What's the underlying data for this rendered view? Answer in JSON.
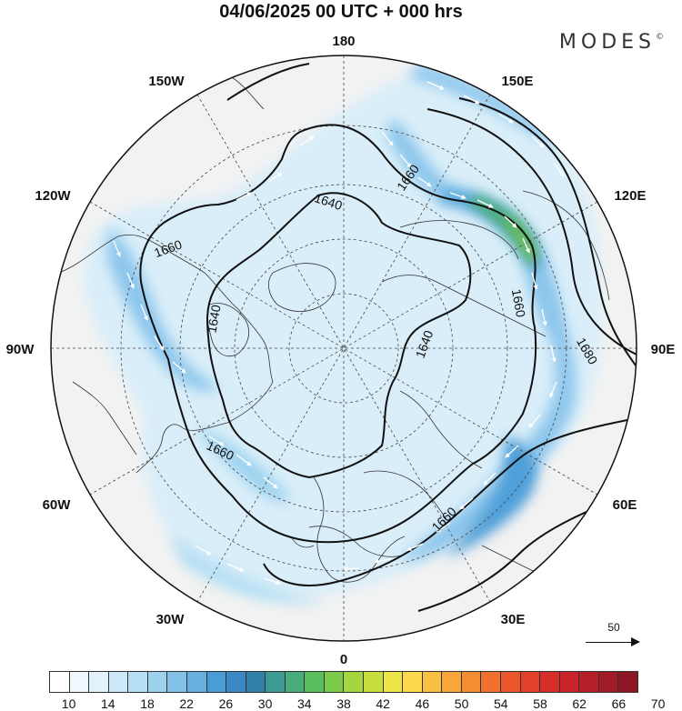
{
  "title": "04/06/2025  00 UTC  + 000 hrs",
  "brand": {
    "name": "MODES",
    "mark": "©"
  },
  "longitude_labels": [
    {
      "id": "lon-180",
      "text": "180"
    },
    {
      "id": "lon-150w",
      "text": "150W"
    },
    {
      "id": "lon-150e",
      "text": "150E"
    },
    {
      "id": "lon-120w",
      "text": "120W"
    },
    {
      "id": "lon-120e",
      "text": "120E"
    },
    {
      "id": "lon-90w",
      "text": "90W"
    },
    {
      "id": "lon-90e",
      "text": "90E"
    },
    {
      "id": "lon-60w",
      "text": "60W"
    },
    {
      "id": "lon-60e",
      "text": "60E"
    },
    {
      "id": "lon-30w",
      "text": "30W"
    },
    {
      "id": "lon-30e",
      "text": "30E"
    },
    {
      "id": "lon-0",
      "text": "0"
    }
  ],
  "contour_labels": [
    "1640",
    "1640",
    "1640",
    "1660",
    "1660",
    "1660",
    "1660",
    "1660",
    "1680"
  ],
  "contour_levels": [
    1640,
    1660,
    1680
  ],
  "reference_vector": {
    "value": "50"
  },
  "colorbar": {
    "ticks": [
      "10",
      "14",
      "18",
      "22",
      "26",
      "30",
      "34",
      "38",
      "42",
      "46",
      "50",
      "54",
      "58",
      "62",
      "66",
      "70"
    ],
    "colors": [
      "#ffffff",
      "#eef8fd",
      "#e1f2fb",
      "#cde9f7",
      "#b5dff4",
      "#9dd2ef",
      "#82c2e8",
      "#66b0e0",
      "#4a9cd6",
      "#3a88c6",
      "#2f7fa8",
      "#3b9a93",
      "#49ac7c",
      "#5bbe5c",
      "#7ccb48",
      "#a4d63e",
      "#c8de3c",
      "#ece448",
      "#fbd84c",
      "#f9bf42",
      "#f7a63a",
      "#f48c34",
      "#f07030",
      "#ea562c",
      "#e33f2a",
      "#d82e2a",
      "#c8242a",
      "#b61e28",
      "#a21a26",
      "#8e1624"
    ]
  }
}
